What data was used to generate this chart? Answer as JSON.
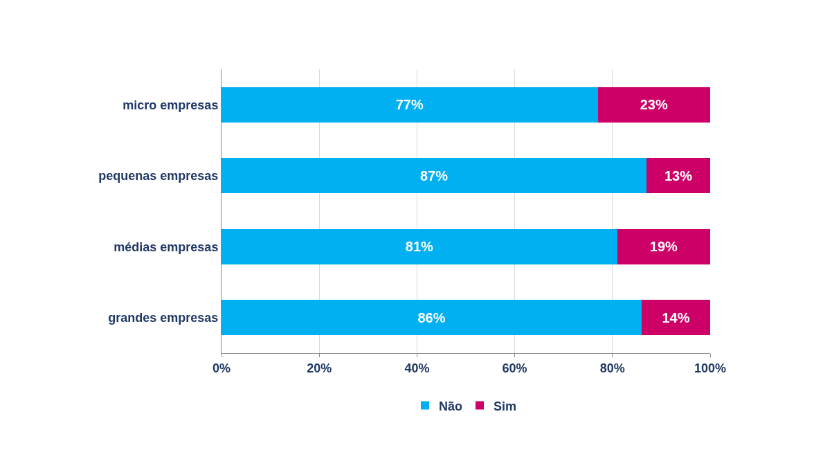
{
  "chart_data": {
    "type": "bar",
    "orientation": "horizontal",
    "stacked": true,
    "categories": [
      "micro empresas",
      "pequenas empresas",
      "médias empresas",
      "grandes empresas"
    ],
    "series": [
      {
        "name": "Não",
        "color": "#00b0f0",
        "values": [
          77,
          87,
          81,
          86
        ],
        "value_labels": [
          "77%",
          "87%",
          "81%",
          "86%"
        ]
      },
      {
        "name": "Sim",
        "color": "#cc0066",
        "values": [
          23,
          13,
          19,
          14
        ],
        "value_labels": [
          "23%",
          "13%",
          "19%",
          "14%"
        ]
      }
    ],
    "xlim": [
      0,
      100
    ],
    "xticks": [
      {
        "value": 0,
        "label": "0%"
      },
      {
        "value": 20,
        "label": "20%"
      },
      {
        "value": 40,
        "label": "40%"
      },
      {
        "value": 60,
        "label": "60%"
      },
      {
        "value": 80,
        "label": "80%"
      },
      {
        "value": 100,
        "label": "100%"
      }
    ],
    "grid": "x",
    "legend": "bottom"
  }
}
